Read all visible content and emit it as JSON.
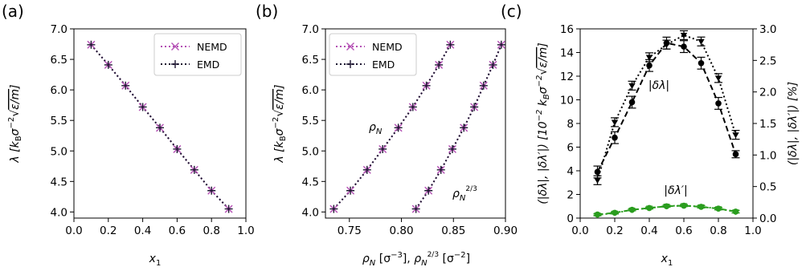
{
  "figure": {
    "panels": [
      "(a)",
      "(b)",
      "(c)"
    ]
  },
  "colors": {
    "nemd": "#b44fb4",
    "emd": "#1c1530",
    "black": "#000000",
    "green": "#2a9d1e"
  },
  "chart_data": [
    {
      "id": "a",
      "type": "line",
      "title": "",
      "xlabel": "x₁",
      "ylabel": "λ [k_B σ⁻² √(ε/m)]",
      "xlim": [
        0.0,
        1.0
      ],
      "ylim": [
        3.9,
        7.0
      ],
      "xticks": [
        0.0,
        0.2,
        0.4,
        0.6,
        0.8,
        1.0
      ],
      "xtick_labels": [
        "0.0",
        "0.2",
        "0.4",
        "0.6",
        "0.8",
        "1.0"
      ],
      "yticks": [
        4.0,
        4.5,
        5.0,
        5.5,
        6.0,
        6.5,
        7.0
      ],
      "ytick_labels": [
        "4.0",
        "4.5",
        "5.0",
        "5.5",
        "6.0",
        "6.5",
        "7.0"
      ],
      "legend": {
        "placement": "top-right",
        "entries": [
          "NEMD",
          "EMD"
        ]
      },
      "series": [
        {
          "name": "NEMD",
          "marker": "x",
          "style": "dotted",
          "x": [
            0.1,
            0.2,
            0.3,
            0.4,
            0.5,
            0.6,
            0.7,
            0.8,
            0.9
          ],
          "y": [
            6.74,
            6.41,
            6.07,
            5.72,
            5.38,
            5.03,
            4.69,
            4.35,
            4.05
          ]
        },
        {
          "name": "EMD",
          "marker": "+",
          "style": "dotted",
          "x": [
            0.1,
            0.2,
            0.3,
            0.4,
            0.5,
            0.6,
            0.7,
            0.8,
            0.9
          ],
          "y": [
            6.74,
            6.41,
            6.07,
            5.72,
            5.38,
            5.03,
            4.69,
            4.35,
            4.05
          ]
        }
      ]
    },
    {
      "id": "b",
      "type": "line",
      "title": "",
      "xlabel": "ρ_N [σ⁻³],  ρ_N^(2/3) [σ⁻²]",
      "ylabel": "λ [k_B σ⁻² √(ε/m)]",
      "xlim": [
        0.727,
        0.9
      ],
      "ylim": [
        3.9,
        7.0
      ],
      "xticks": [
        0.75,
        0.8,
        0.85,
        0.9
      ],
      "xtick_labels": [
        "0.75",
        "0.80",
        "0.85",
        "0.90"
      ],
      "yticks": [
        4.0,
        4.5,
        5.0,
        5.5,
        6.0,
        6.5,
        7.0
      ],
      "ytick_labels": [
        "4.0",
        "4.5",
        "5.0",
        "5.5",
        "6.0",
        "6.5",
        "7.0"
      ],
      "legend": {
        "placement": "top-left",
        "entries": [
          "NEMD",
          "EMD"
        ]
      },
      "annotations": [
        {
          "text": "ρ_N",
          "x": 0.766,
          "y": 5.8
        },
        {
          "text": "ρ_N^(2/3)",
          "x": 0.853,
          "y": 4.9
        }
      ],
      "series": [
        {
          "name": "NEMD",
          "marker": "x",
          "style": "dotted",
          "group": "ρ_N",
          "x": [
            0.735,
            0.751,
            0.767,
            0.782,
            0.797,
            0.811,
            0.824,
            0.836,
            0.847
          ],
          "y": [
            4.05,
            4.35,
            4.69,
            5.03,
            5.38,
            5.72,
            6.07,
            6.41,
            6.74
          ]
        },
        {
          "name": "EMD",
          "marker": "+",
          "style": "dotted",
          "group": "ρ_N",
          "x": [
            0.735,
            0.751,
            0.767,
            0.782,
            0.797,
            0.811,
            0.824,
            0.836,
            0.847
          ],
          "y": [
            4.05,
            4.35,
            4.69,
            5.03,
            5.38,
            5.72,
            6.07,
            6.41,
            6.74
          ]
        },
        {
          "name": "NEMD",
          "marker": "x",
          "style": "dotted",
          "group": "ρ_N^(2/3)",
          "x": [
            0.814,
            0.826,
            0.838,
            0.849,
            0.86,
            0.87,
            0.879,
            0.888,
            0.896
          ],
          "y": [
            4.05,
            4.35,
            4.69,
            5.03,
            5.38,
            5.72,
            6.07,
            6.41,
            6.74
          ]
        },
        {
          "name": "EMD",
          "marker": "+",
          "style": "dotted",
          "group": "ρ_N^(2/3)",
          "x": [
            0.814,
            0.826,
            0.838,
            0.849,
            0.86,
            0.87,
            0.879,
            0.888,
            0.896
          ],
          "y": [
            4.05,
            4.35,
            4.69,
            5.03,
            5.38,
            5.72,
            6.07,
            6.41,
            6.74
          ]
        }
      ]
    },
    {
      "id": "c",
      "type": "line",
      "title": "",
      "xlabel": "x₁",
      "ylabel": "(|δλ|, |δλ′|) [10⁻² k_B σ⁻² √(ε/m)]",
      "ylabel_right": "(|δλ|, |δλ′|) [%]",
      "xlim": [
        0.0,
        1.0
      ],
      "ylim": [
        0,
        16
      ],
      "ylim_right": [
        0,
        3.0
      ],
      "xticks": [
        0.0,
        0.2,
        0.4,
        0.6,
        0.8,
        1.0
      ],
      "xtick_labels": [
        "0.0",
        "0.2",
        "0.4",
        "0.6",
        "0.8",
        "1.0"
      ],
      "yticks": [
        0,
        2,
        4,
        6,
        8,
        10,
        12,
        14,
        16
      ],
      "ytick_labels": [
        "0",
        "2",
        "4",
        "6",
        "8",
        "10",
        "12",
        "14",
        "16"
      ],
      "yticks_right": [
        0.0,
        0.5,
        1.0,
        1.5,
        2.0,
        2.5,
        3.0
      ],
      "ytick_labels_right": [
        "0.0",
        "0.5",
        "1.0",
        "1.5",
        "2.0",
        "2.5",
        "3.0"
      ],
      "annotations": [
        {
          "text": "|δλ|",
          "x": 0.52,
          "y": 10.8
        },
        {
          "text": "|δλ′|",
          "x": 0.52,
          "y": 2.2
        }
      ],
      "series": [
        {
          "name": "|δλ|",
          "axis": "left",
          "marker": "circle",
          "style": "dashed",
          "color": "black",
          "x": [
            0.1,
            0.2,
            0.3,
            0.4,
            0.5,
            0.6,
            0.7,
            0.8,
            0.9
          ],
          "y": [
            3.9,
            6.8,
            9.8,
            12.9,
            14.8,
            14.5,
            13.1,
            9.7,
            5.4
          ],
          "err": [
            0.5,
            0.5,
            0.5,
            0.5,
            0.5,
            0.5,
            0.5,
            0.5,
            0.3
          ]
        },
        {
          "name": "|δλ|",
          "axis": "right",
          "marker": "triangle-down",
          "style": "dotted",
          "color": "black",
          "x": [
            0.1,
            0.2,
            0.3,
            0.4,
            0.5,
            0.6,
            0.7,
            0.8,
            0.9
          ],
          "y": [
            0.6,
            1.52,
            2.1,
            2.55,
            2.75,
            2.9,
            2.8,
            2.22,
            1.32
          ],
          "err": [
            0.07,
            0.07,
            0.07,
            0.07,
            0.07,
            0.07,
            0.07,
            0.07,
            0.07
          ]
        },
        {
          "name": "|δλ′|",
          "axis": "left",
          "marker": "circle",
          "style": "dashed",
          "color": "green",
          "x": [
            0.1,
            0.2,
            0.3,
            0.4,
            0.5,
            0.6,
            0.7,
            0.8,
            0.9
          ],
          "y": [
            0.3,
            0.45,
            0.7,
            0.85,
            1.0,
            1.05,
            0.95,
            0.8,
            0.55
          ],
          "err": [
            0.08,
            0.08,
            0.08,
            0.08,
            0.08,
            0.08,
            0.1,
            0.1,
            0.1
          ]
        },
        {
          "name": "|δλ′|",
          "axis": "right",
          "marker": "triangle-down",
          "style": "dotted",
          "color": "green",
          "x": [
            0.1,
            0.2,
            0.3,
            0.4,
            0.5,
            0.6,
            0.7,
            0.8,
            0.9
          ],
          "y": [
            0.05,
            0.08,
            0.13,
            0.16,
            0.19,
            0.2,
            0.18,
            0.15,
            0.1
          ],
          "err": [
            0.015,
            0.015,
            0.015,
            0.015,
            0.015,
            0.015,
            0.02,
            0.02,
            0.02
          ]
        }
      ]
    }
  ]
}
